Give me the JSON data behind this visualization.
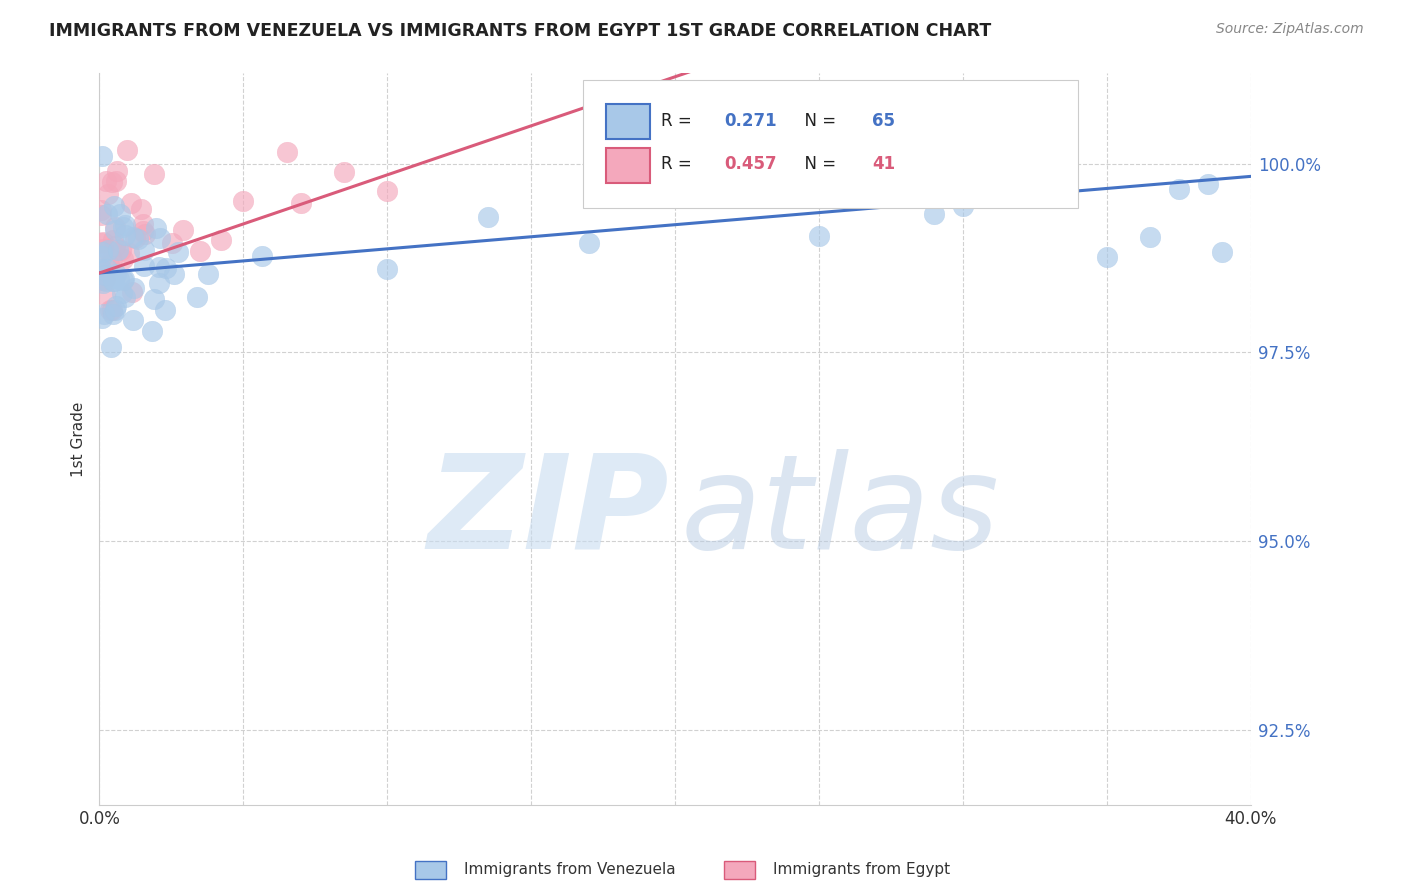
{
  "title": "IMMIGRANTS FROM VENEZUELA VS IMMIGRANTS FROM EGYPT 1ST GRADE CORRELATION CHART",
  "source": "Source: ZipAtlas.com",
  "ylabel": "1st Grade",
  "xlim": [
    0.0,
    40.0
  ],
  "ylim": [
    91.5,
    101.2
  ],
  "yticks": [
    92.5,
    95.0,
    97.5,
    100.0
  ],
  "xtick_count": 9,
  "legend_R1": "0.271",
  "legend_N1": "65",
  "legend_R2": "0.457",
  "legend_N2": "41",
  "series1_color": "#A8C8E8",
  "series2_color": "#F4A8BC",
  "line1_color": "#4472C4",
  "line2_color": "#D95B7A",
  "watermark_zip_color": "#C8DCF0",
  "watermark_atlas_color": "#B8CCE4",
  "background_color": "#FFFFFF",
  "right_axis_color": "#4472C4",
  "grid_color": "#CCCCCC",
  "title_color": "#222222",
  "source_color": "#888888",
  "label_color": "#333333",
  "legend_text_color": "#222222"
}
